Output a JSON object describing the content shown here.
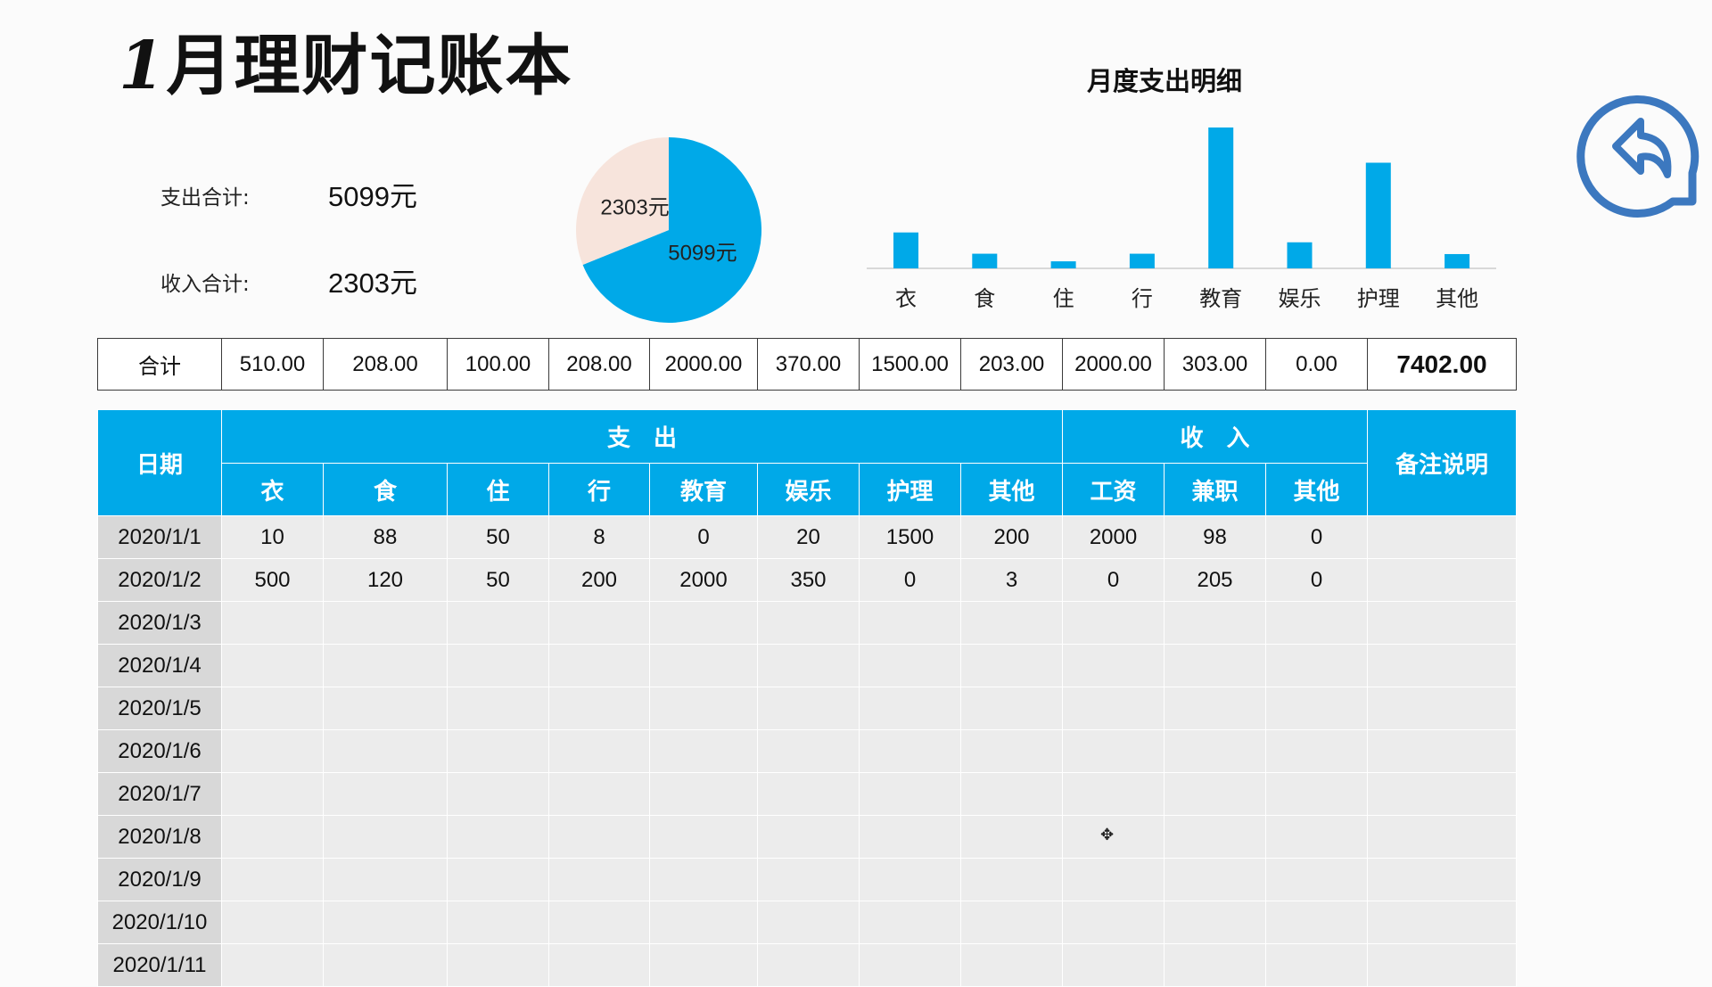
{
  "title": {
    "digit": "1",
    "text": "月理财记账本"
  },
  "summary": {
    "expense_label": "支出合计:",
    "expense_value": "5099元",
    "income_label": "收入合计:",
    "income_value": "2303元"
  },
  "colors": {
    "accent": "#00a9e8",
    "pie_income": "#f7e4dc",
    "header_text": "#ffffff"
  },
  "chart_data": [
    {
      "type": "pie",
      "slices": [
        {
          "label": "5099元",
          "value": 5099,
          "color": "#00a9e8"
        },
        {
          "label": "2303元",
          "value": 2303,
          "color": "#f7e4dc"
        }
      ]
    },
    {
      "type": "bar",
      "title": "月度支出明细",
      "categories": [
        "衣",
        "食",
        "住",
        "行",
        "教育",
        "娱乐",
        "护理",
        "其他"
      ],
      "values": [
        510,
        208,
        100,
        208,
        2000,
        370,
        1500,
        203
      ],
      "ylim": [
        0,
        2000
      ],
      "grid": false,
      "color": "#00a9e8"
    }
  ],
  "totals": {
    "label": "合计",
    "values": [
      "510.00",
      "208.00",
      "100.00",
      "208.00",
      "2000.00",
      "370.00",
      "1500.00",
      "203.00",
      "2000.00",
      "303.00",
      "0.00"
    ],
    "grand_total": "7402.00"
  },
  "table": {
    "date_header": "日期",
    "expense_group": "支　出",
    "income_group": "收　入",
    "note_header": "备注说明",
    "expense_columns": [
      "衣",
      "食",
      "住",
      "行",
      "教育",
      "娱乐",
      "护理",
      "其他"
    ],
    "income_columns": [
      "工资",
      "兼职",
      "其他"
    ],
    "rows": [
      {
        "date": "2020/1/1",
        "values": [
          "10",
          "88",
          "50",
          "8",
          "0",
          "20",
          "1500",
          "200",
          "2000",
          "98",
          "0"
        ],
        "note": ""
      },
      {
        "date": "2020/1/2",
        "values": [
          "500",
          "120",
          "50",
          "200",
          "2000",
          "350",
          "0",
          "3",
          "0",
          "205",
          "0"
        ],
        "note": ""
      },
      {
        "date": "2020/1/3",
        "values": [
          "",
          "",
          "",
          "",
          "",
          "",
          "",
          "",
          "",
          "",
          ""
        ],
        "note": ""
      },
      {
        "date": "2020/1/4",
        "values": [
          "",
          "",
          "",
          "",
          "",
          "",
          "",
          "",
          "",
          "",
          ""
        ],
        "note": ""
      },
      {
        "date": "2020/1/5",
        "values": [
          "",
          "",
          "",
          "",
          "",
          "",
          "",
          "",
          "",
          "",
          ""
        ],
        "note": ""
      },
      {
        "date": "2020/1/6",
        "values": [
          "",
          "",
          "",
          "",
          "",
          "",
          "",
          "",
          "",
          "",
          ""
        ],
        "note": ""
      },
      {
        "date": "2020/1/7",
        "values": [
          "",
          "",
          "",
          "",
          "",
          "",
          "",
          "",
          "",
          "",
          ""
        ],
        "note": ""
      },
      {
        "date": "2020/1/8",
        "values": [
          "",
          "",
          "",
          "",
          "",
          "",
          "",
          "",
          "",
          "",
          ""
        ],
        "note": ""
      },
      {
        "date": "2020/1/9",
        "values": [
          "",
          "",
          "",
          "",
          "",
          "",
          "",
          "",
          "",
          "",
          ""
        ],
        "note": ""
      },
      {
        "date": "2020/1/10",
        "values": [
          "",
          "",
          "",
          "",
          "",
          "",
          "",
          "",
          "",
          "",
          ""
        ],
        "note": ""
      },
      {
        "date": "2020/1/11",
        "values": [
          "",
          "",
          "",
          "",
          "",
          "",
          "",
          "",
          "",
          "",
          ""
        ],
        "note": ""
      }
    ]
  },
  "icons": {
    "back": "back-arrow-icon",
    "cursor": "crosshair-cursor-icon"
  }
}
